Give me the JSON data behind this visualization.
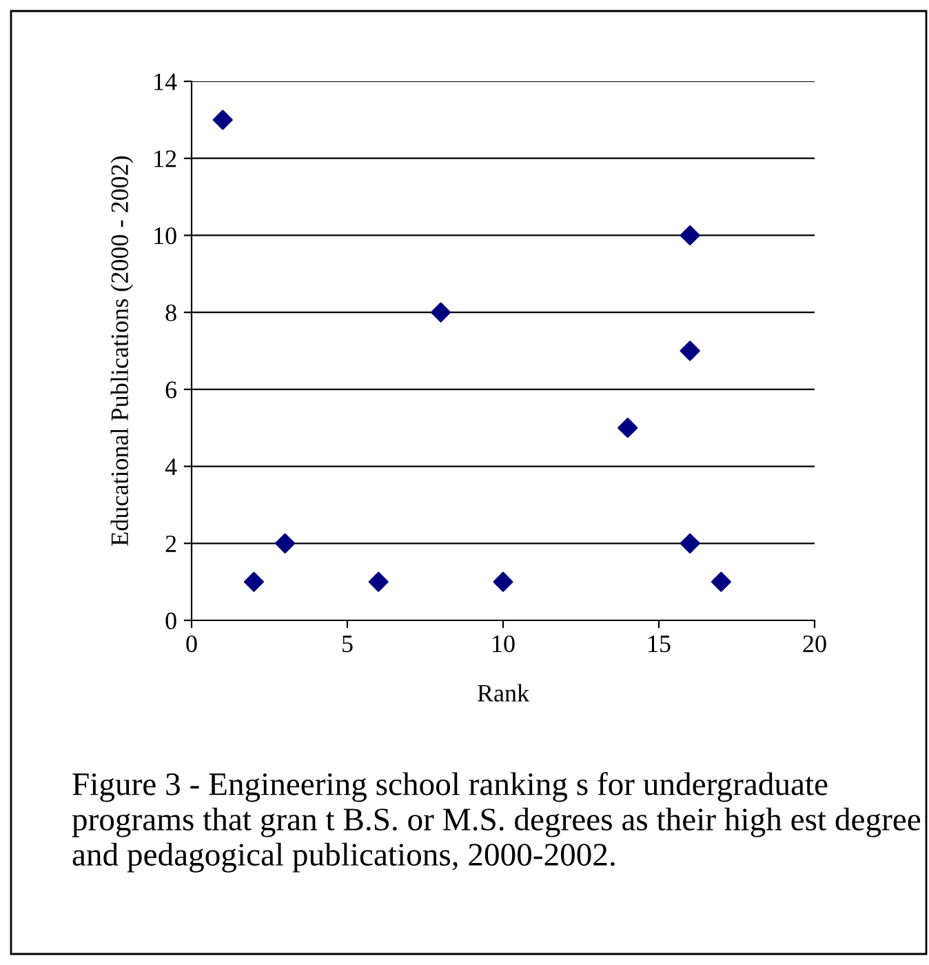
{
  "chart_data": {
    "type": "scatter",
    "xlabel": "Rank",
    "ylabel": "Educational Publications (2000 - 2002)",
    "x": [
      1,
      2,
      3,
      6,
      8,
      10,
      14,
      16,
      16,
      16,
      17
    ],
    "series": [
      {
        "color": "#000080",
        "values": [
          13,
          1,
          2,
          1,
          8,
          1,
          5,
          10,
          7,
          2,
          1
        ]
      }
    ],
    "marker": "diamond",
    "xlim": [
      0,
      20
    ],
    "xticks": [
      0,
      5,
      10,
      15,
      20
    ],
    "ylim": [
      0,
      14
    ],
    "yticks": [
      0,
      2,
      4,
      6,
      8,
      10,
      12,
      14
    ],
    "grid": "y",
    "annotations": [
      "Figure 3 - Engineering school ranking s for undergraduate programs that gran t B.S. or M.S. degrees as their high est degree and pedagogical publications, 2000-2002."
    ]
  }
}
